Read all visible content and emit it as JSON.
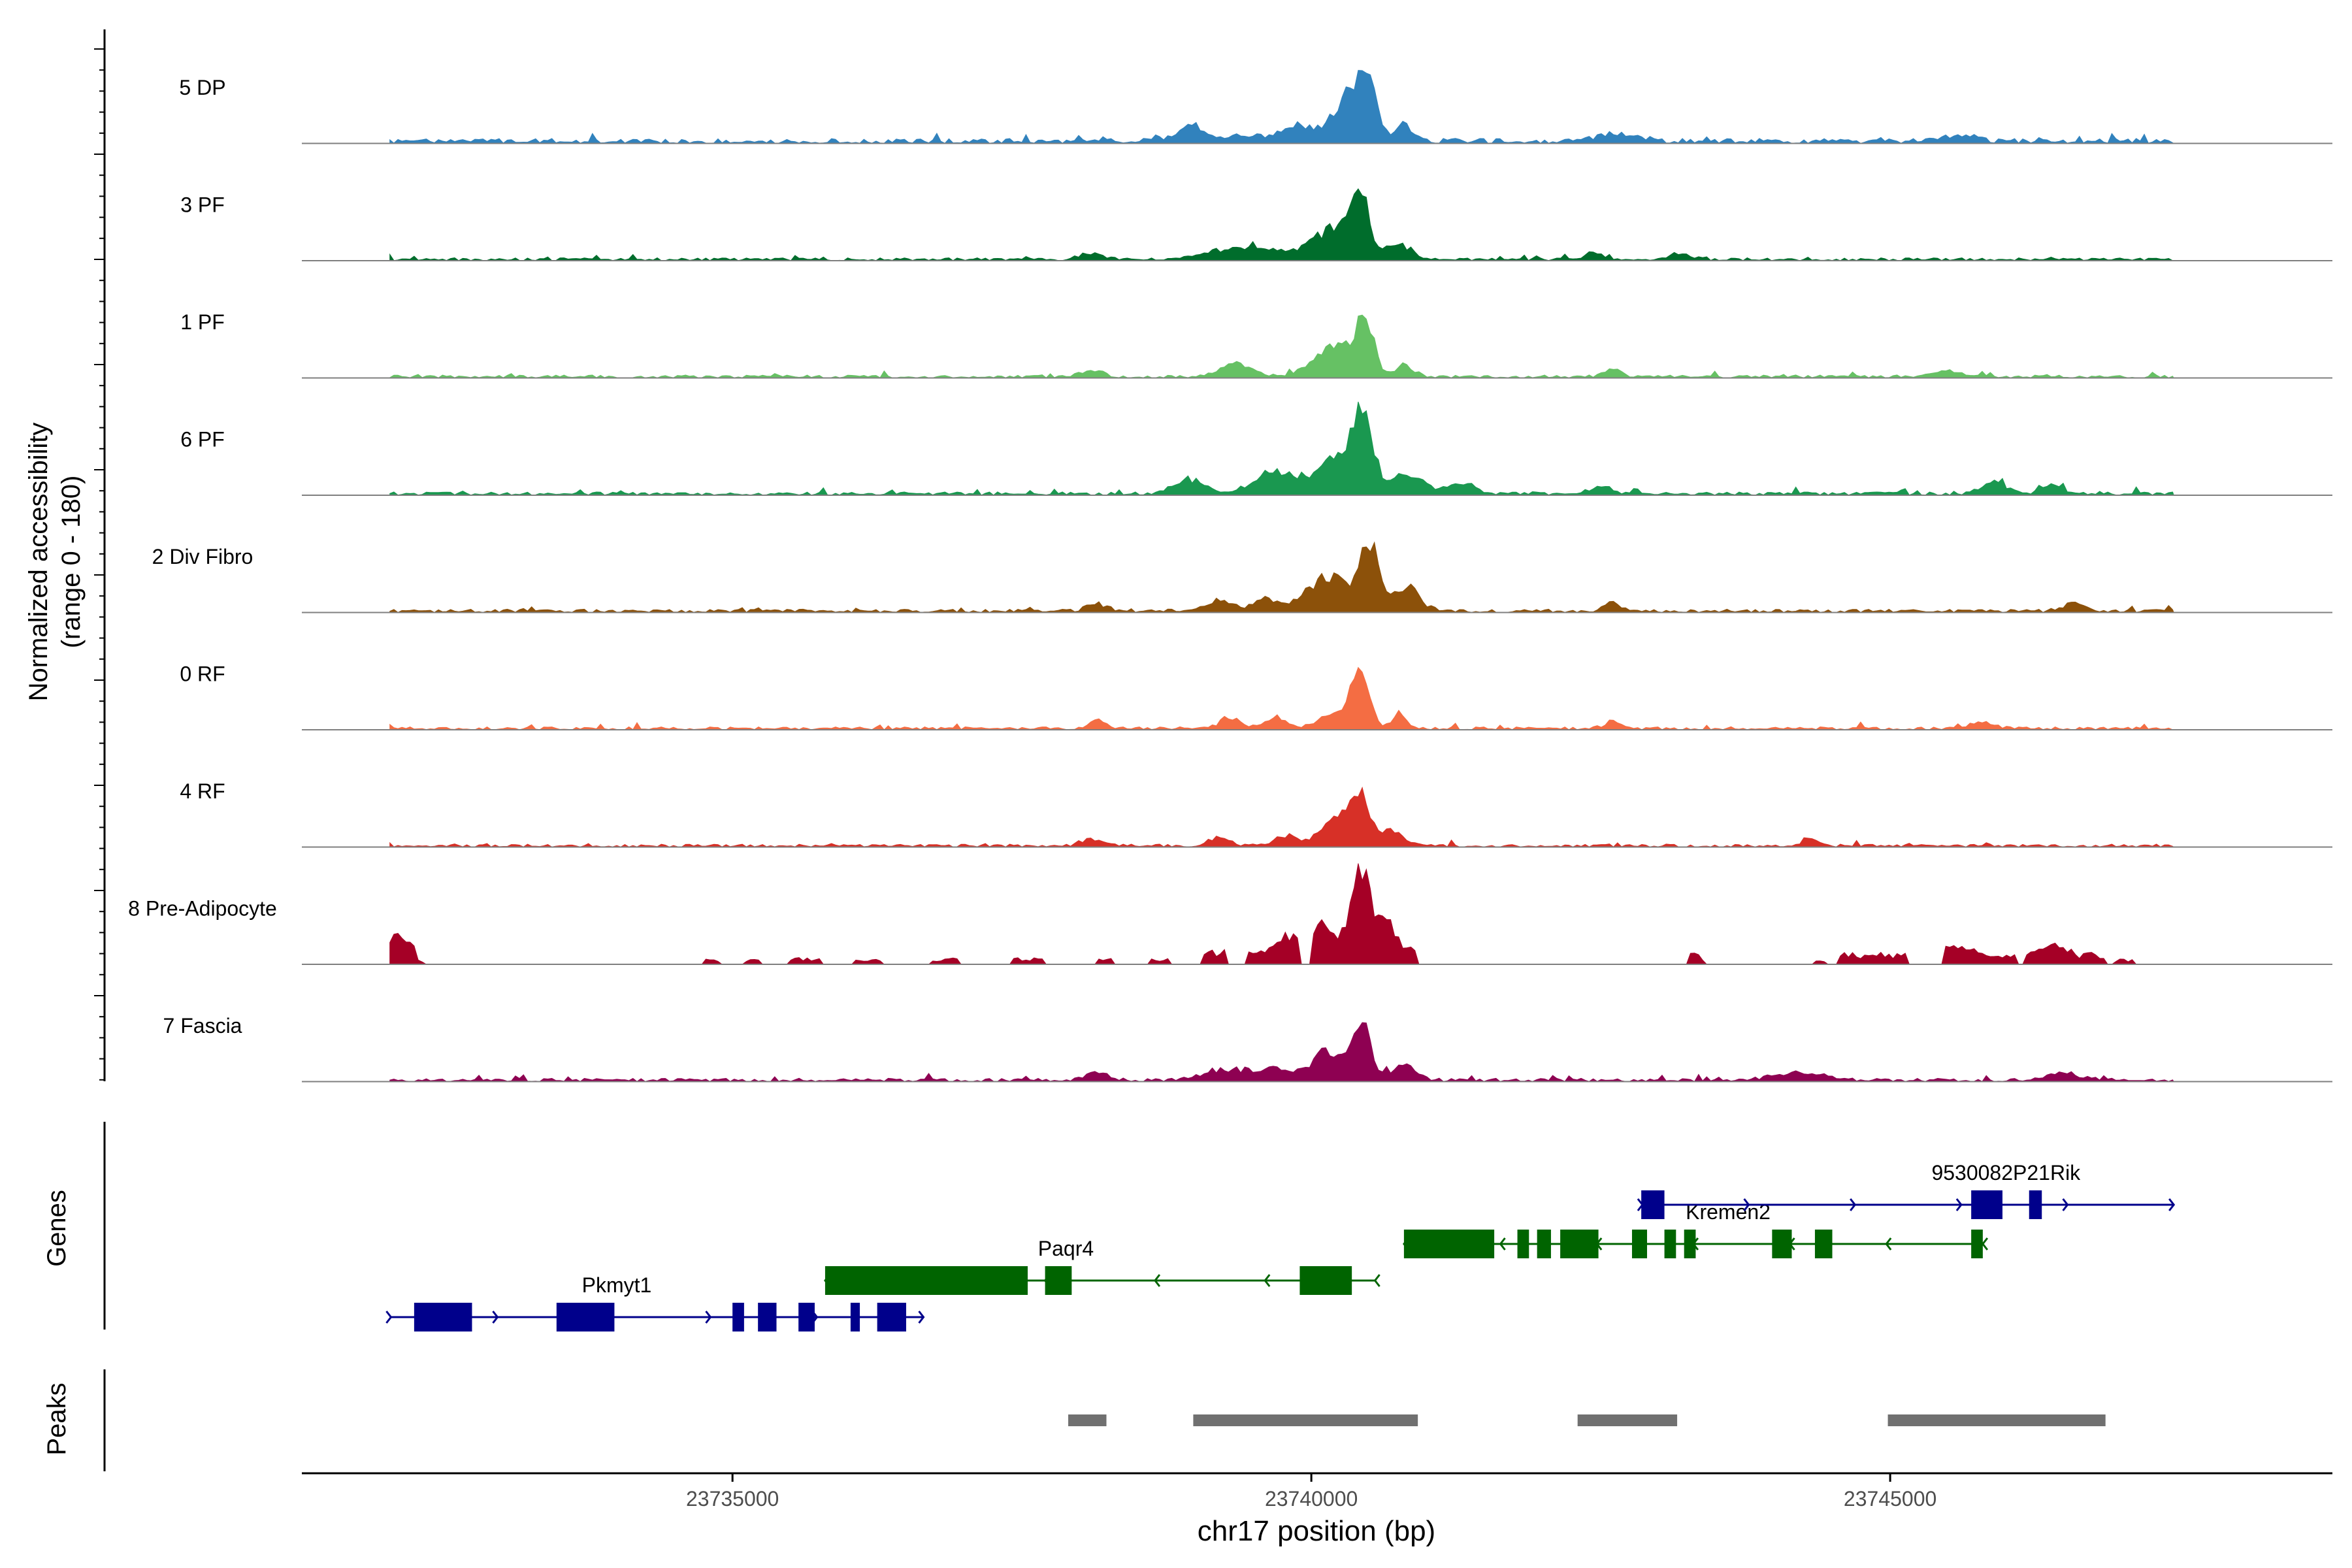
{
  "chart_data": {
    "type": "area",
    "title": "",
    "ylabel": "Normalized accessibility (range 0 - 180)",
    "ylabel_line1": "Normalized accessibility",
    "ylabel_line2": "(range 0 - 180)",
    "xlabel": "chr17 position (bp)",
    "xlim": [
      23731280,
      23748820
    ],
    "x_ticks": [
      23735000,
      23740000,
      23745000
    ],
    "x_tick_labels": [
      "23735000",
      "23740000",
      "23745000"
    ],
    "ylim": [
      0,
      180
    ],
    "region_start": 23732040,
    "region_end": 23747450,
    "tracks": [
      {
        "name": "5 DP",
        "color": "#3182bd",
        "baseline": 12,
        "noise": 4,
        "bumps": [
          [
            23738950,
            20,
            90
          ],
          [
            23739300,
            10,
            400
          ],
          [
            23739900,
            26,
            120
          ],
          [
            23740300,
            70,
            120
          ],
          [
            23740480,
            105,
            80
          ],
          [
            23740800,
            28,
            70
          ],
          [
            23742620,
            12,
            160
          ],
          [
            23745600,
            12,
            130
          ]
        ]
      },
      {
        "name": "3 PF",
        "color": "#006d2c",
        "baseline": 7,
        "noise": 3,
        "bumps": [
          [
            23738100,
            12,
            90
          ],
          [
            23739450,
            22,
            300
          ],
          [
            23740200,
            55,
            180
          ],
          [
            23740420,
            105,
            70
          ],
          [
            23740750,
            25,
            110
          ],
          [
            23742450,
            9,
            90
          ],
          [
            23743200,
            10,
            90
          ]
        ]
      },
      {
        "name": "1 PF",
        "color": "#66c164",
        "baseline": 7,
        "noise": 3,
        "bumps": [
          [
            23738100,
            12,
            90
          ],
          [
            23739350,
            22,
            140
          ],
          [
            23740200,
            55,
            170
          ],
          [
            23740460,
            95,
            75
          ],
          [
            23740800,
            20,
            70
          ],
          [
            23742600,
            14,
            70
          ],
          [
            23745500,
            10,
            140
          ]
        ]
      },
      {
        "name": "6 PF",
        "color": "#1a9850",
        "baseline": 8,
        "noise": 4,
        "bumps": [
          [
            23738950,
            25,
            130
          ],
          [
            23739700,
            38,
            190
          ],
          [
            23740300,
            70,
            200
          ],
          [
            23740440,
            100,
            70
          ],
          [
            23740850,
            35,
            120
          ],
          [
            23741300,
            20,
            120
          ],
          [
            23742500,
            14,
            90
          ],
          [
            23745900,
            22,
            100
          ],
          [
            23746400,
            16,
            90
          ]
        ]
      },
      {
        "name": "2 Div Fibro",
        "color": "#8c510a",
        "baseline": 8,
        "noise": 3,
        "bumps": [
          [
            23738150,
            12,
            90
          ],
          [
            23739200,
            20,
            120
          ],
          [
            23739600,
            22,
            90
          ],
          [
            23740150,
            60,
            200
          ],
          [
            23740500,
            110,
            80
          ],
          [
            23740820,
            45,
            110
          ],
          [
            23742600,
            14,
            70
          ],
          [
            23746600,
            16,
            90
          ]
        ]
      },
      {
        "name": "0 RF",
        "color": "#f46d43",
        "baseline": 7,
        "noise": 3,
        "bumps": [
          [
            23738150,
            15,
            70
          ],
          [
            23739300,
            20,
            90
          ],
          [
            23739700,
            20,
            100
          ],
          [
            23740200,
            30,
            120
          ],
          [
            23740420,
            95,
            80
          ],
          [
            23740760,
            28,
            60
          ],
          [
            23742600,
            12,
            70
          ],
          [
            23745800,
            12,
            100
          ]
        ]
      },
      {
        "name": "4 RF",
        "color": "#d73027",
        "baseline": 7,
        "noise": 3,
        "bumps": [
          [
            23738120,
            12,
            90
          ],
          [
            23739200,
            16,
            90
          ],
          [
            23739800,
            18,
            110
          ],
          [
            23740200,
            45,
            120
          ],
          [
            23740420,
            85,
            80
          ],
          [
            23740700,
            30,
            90
          ],
          [
            23744300,
            14,
            60
          ]
        ]
      },
      {
        "name": "8 Pre-Adipocyte",
        "color": "#a50026",
        "baseline": 0,
        "noise": 0,
        "bumps": [
          [
            23732130,
            35,
            90
          ],
          [
            23739800,
            30,
            120
          ],
          [
            23740100,
            50,
            120
          ],
          [
            23740420,
            150,
            70
          ],
          [
            23740620,
            60,
            80
          ],
          [
            23743300,
            14,
            50
          ],
          [
            23745550,
            18,
            200
          ],
          [
            23746400,
            22,
            100
          ]
        ],
        "blocks": [
          [
            23732020,
            23732260,
            20
          ],
          [
            23734760,
            23734880,
            8
          ],
          [
            23735100,
            23735250,
            8
          ],
          [
            23735480,
            23735750,
            12
          ],
          [
            23736050,
            23736280,
            8
          ],
          [
            23736700,
            23736950,
            10
          ],
          [
            23737400,
            23737680,
            12
          ],
          [
            23738150,
            23738300,
            10
          ],
          [
            23738620,
            23738780,
            10
          ],
          [
            23739050,
            23739250,
            22
          ],
          [
            23739450,
            23739900,
            20
          ],
          [
            23740000,
            23740900,
            30
          ],
          [
            23743250,
            23743380,
            8
          ],
          [
            23744350,
            23744450,
            8
          ],
          [
            23744550,
            23745150,
            18
          ],
          [
            23745450,
            23746100,
            14
          ],
          [
            23746150,
            23746850,
            18
          ],
          [
            23746950,
            23747100,
            8
          ]
        ]
      },
      {
        "name": "7 Fascia",
        "color": "#8e0152",
        "baseline": 8,
        "noise": 3,
        "bumps": [
          [
            23738150,
            14,
            90
          ],
          [
            23739300,
            20,
            200
          ],
          [
            23739700,
            18,
            120
          ],
          [
            23740150,
            50,
            150
          ],
          [
            23740440,
            95,
            80
          ],
          [
            23740800,
            30,
            100
          ],
          [
            23744200,
            14,
            200
          ],
          [
            23746500,
            12,
            150
          ]
        ]
      }
    ],
    "genes_label": "Genes",
    "genes": [
      {
        "name": "Pkmyt1",
        "strand": "+",
        "color": "#00008b",
        "start": 23732050,
        "end": 23736650,
        "label_x": 23734000,
        "row": 3,
        "exons": [
          [
            23732250,
            23732750,
            "cds"
          ],
          [
            23733480,
            23733980,
            "cds"
          ],
          [
            23735000,
            23735100,
            "cds"
          ],
          [
            23735220,
            23735380,
            "cds"
          ],
          [
            23735570,
            23735710,
            "cds"
          ],
          [
            23736020,
            23736100,
            "cds"
          ],
          [
            23736250,
            23736500,
            "cds"
          ]
        ]
      },
      {
        "name": "Paqr4",
        "strand": "-",
        "color": "#006400",
        "start": 23735800,
        "end": 23740550,
        "label_x": 23737880,
        "row": 2,
        "exons": [
          [
            23735800,
            23737550,
            "cds"
          ],
          [
            23737700,
            23737930,
            "cds"
          ],
          [
            23739900,
            23740350,
            "cds"
          ]
        ]
      },
      {
        "name": "Kremen2",
        "strand": "-",
        "color": "#006400",
        "start": 23740800,
        "end": 23745800,
        "label_x": 23743600,
        "row": 1,
        "exons": [
          [
            23740800,
            23741580,
            "cds"
          ],
          [
            23741780,
            23741880,
            "cds"
          ],
          [
            23741950,
            23742070,
            "cds"
          ],
          [
            23742150,
            23742480,
            "cds"
          ],
          [
            23742770,
            23742900,
            "cds"
          ],
          [
            23743050,
            23743150,
            "cds"
          ],
          [
            23743220,
            23743320,
            "cds"
          ],
          [
            23743980,
            23744150,
            "cds"
          ],
          [
            23744350,
            23744500,
            "cds"
          ],
          [
            23745700,
            23745800,
            "cds"
          ]
        ]
      },
      {
        "name": "9530082P21Rik",
        "strand": "+",
        "color": "#00008b",
        "start": 23742860,
        "end": 23747450,
        "label_x": 23746000,
        "row": 0,
        "exons": [
          [
            23742850,
            23743050,
            "cds"
          ],
          [
            23745700,
            23745970,
            "cds"
          ],
          [
            23746200,
            23746310,
            "cds"
          ]
        ]
      }
    ],
    "peaks_label": "Peaks",
    "peaks": [
      [
        23737900,
        23738230
      ],
      [
        23738980,
        23740920
      ],
      [
        23742300,
        23743160
      ],
      [
        23744980,
        23746860
      ]
    ]
  }
}
